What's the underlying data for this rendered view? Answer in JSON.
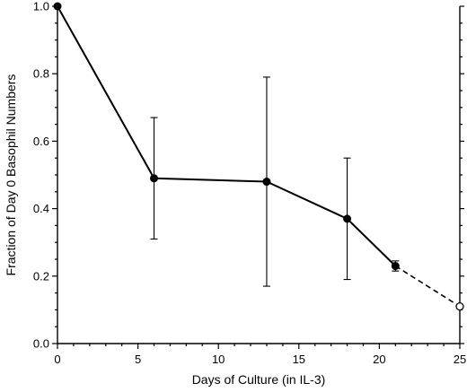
{
  "chart_data": {
    "type": "line",
    "title": "",
    "xlabel": "Days of Culture (in IL-3)",
    "ylabel": "Fraction of Day 0 Basophil Numbers",
    "xlim": [
      0,
      25
    ],
    "ylim": [
      0,
      1.0
    ],
    "x_ticks": [
      0,
      5,
      10,
      15,
      20,
      25
    ],
    "y_ticks": [
      0.0,
      0.2,
      0.4,
      0.6,
      0.8,
      1.0
    ],
    "x_tick_labels": [
      "0",
      "5",
      "10",
      "15",
      "20",
      "25"
    ],
    "y_tick_labels": [
      "0.0",
      "0.2",
      "0.4",
      "0.6",
      "0.8",
      "1.0"
    ],
    "grid": false,
    "series": [
      {
        "style": "solid",
        "marker": "filled-circle",
        "color": "#000000",
        "points": [
          {
            "x": 0,
            "y": 1.0
          },
          {
            "x": 6,
            "y": 0.49,
            "err_low": 0.31,
            "err_high": 0.67
          },
          {
            "x": 13,
            "y": 0.48,
            "err_low": 0.17,
            "err_high": 0.79
          },
          {
            "x": 18,
            "y": 0.37,
            "err_low": 0.19,
            "err_high": 0.55
          },
          {
            "x": 21,
            "y": 0.23,
            "err_low": 0.215,
            "err_high": 0.245
          }
        ]
      },
      {
        "style": "dashed",
        "marker": "open-circle",
        "color": "#000000",
        "points": [
          {
            "x": 21,
            "y": 0.23
          },
          {
            "x": 25,
            "y": 0.11
          }
        ]
      }
    ]
  }
}
